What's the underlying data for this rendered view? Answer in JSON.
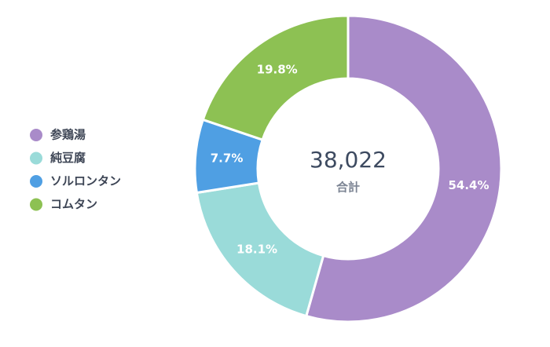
{
  "chart_data": {
    "type": "donut",
    "categories": [
      "参鶏湯",
      "純豆腐",
      "ソルロンタン",
      "コムタン"
    ],
    "values": [
      54.4,
      18.1,
      7.7,
      19.8
    ],
    "value_labels": [
      "54.4%",
      "18.1%",
      "7.7%",
      "19.8%"
    ],
    "colors": [
      "#a98bc9",
      "#9adbd9",
      "#4f9fe3",
      "#8dc153"
    ],
    "center_text": "38,022",
    "center_label": "合計",
    "legend": "left"
  }
}
